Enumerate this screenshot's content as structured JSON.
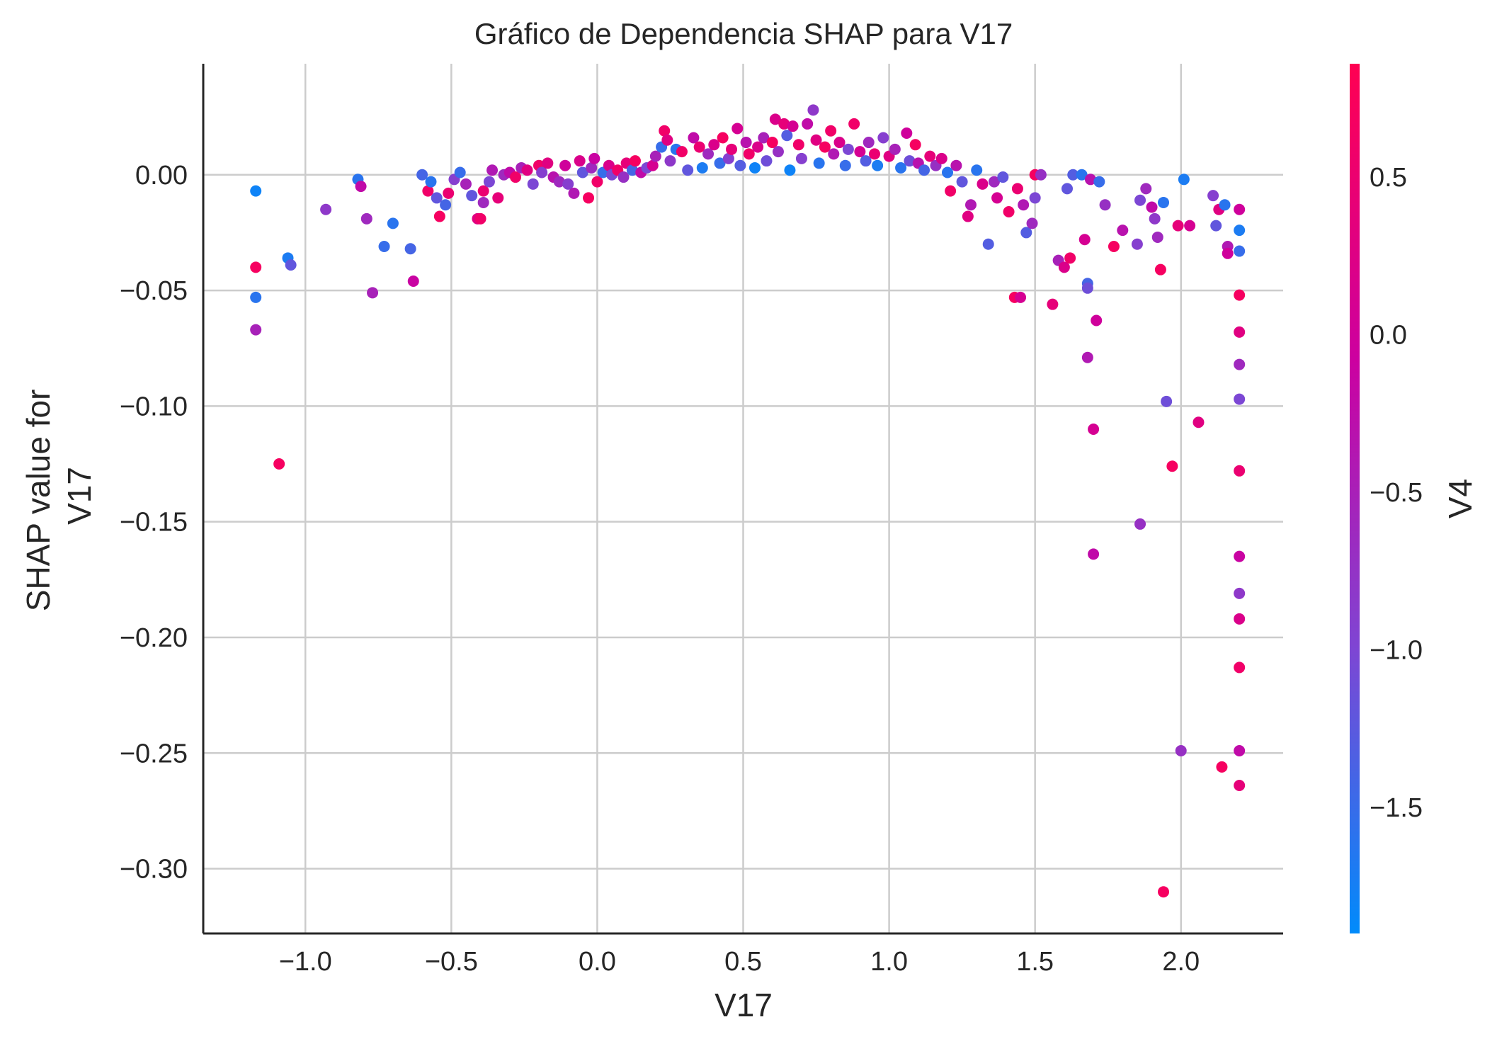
{
  "chart_data": {
    "type": "scatter",
    "title": "Gráfico de Dependencia SHAP para V17",
    "xlabel": "V17",
    "ylabel_lines": [
      "SHAP value for",
      "V17"
    ],
    "xlim": [
      -1.35,
      2.35
    ],
    "ylim": [
      -0.328,
      0.048
    ],
    "xticks": [
      -1.0,
      -0.5,
      0.0,
      0.5,
      1.0,
      1.5,
      2.0
    ],
    "xtick_labels": [
      "−1.0",
      "−0.5",
      "0.0",
      "0.5",
      "1.0",
      "1.5",
      "2.0"
    ],
    "yticks": [
      0.0,
      -0.05,
      -0.1,
      -0.15,
      -0.2,
      -0.25,
      -0.3
    ],
    "ytick_labels": [
      "0.00",
      "−0.05",
      "−0.10",
      "−0.15",
      "−0.20",
      "−0.25",
      "−0.30"
    ],
    "grid": true,
    "colorbar": {
      "label": "V4",
      "range": [
        -1.9,
        0.86
      ],
      "ticks": [
        0.5,
        0.0,
        -0.5,
        -1.0,
        -1.5
      ],
      "tick_labels": [
        "0.5",
        "0.0",
        "−0.5",
        "−1.0",
        "−1.5"
      ],
      "colors": [
        "#008bfb",
        "#7f45d3",
        "#cc00a0",
        "#ff0052"
      ]
    },
    "points": [
      [
        -1.17,
        -0.007,
        -1.8
      ],
      [
        -1.17,
        -0.04,
        0.7
      ],
      [
        -1.17,
        -0.053,
        -1.6
      ],
      [
        -1.17,
        -0.067,
        -0.5
      ],
      [
        -1.09,
        -0.125,
        0.7
      ],
      [
        -1.06,
        -0.036,
        -1.7
      ],
      [
        -1.05,
        -0.039,
        -1.2
      ],
      [
        -0.93,
        -0.015,
        -0.8
      ],
      [
        -0.82,
        -0.002,
        -1.6
      ],
      [
        -0.81,
        -0.005,
        -0.2
      ],
      [
        -0.79,
        -0.019,
        -0.6
      ],
      [
        -0.77,
        -0.051,
        -0.5
      ],
      [
        -0.73,
        -0.031,
        -1.5
      ],
      [
        -0.7,
        -0.021,
        -1.6
      ],
      [
        -0.64,
        -0.032,
        -1.4
      ],
      [
        -0.63,
        -0.046,
        -0.1
      ],
      [
        -0.6,
        0.0,
        -1.4
      ],
      [
        -0.58,
        -0.007,
        0.6
      ],
      [
        -0.57,
        -0.003,
        -1.6
      ],
      [
        -0.55,
        -0.01,
        -1.2
      ],
      [
        -0.54,
        -0.018,
        0.7
      ],
      [
        -0.52,
        -0.013,
        -1.4
      ],
      [
        -0.51,
        -0.008,
        0.5
      ],
      [
        -0.49,
        -0.002,
        -0.9
      ],
      [
        -0.47,
        0.001,
        -1.5
      ],
      [
        -0.45,
        -0.004,
        -0.5
      ],
      [
        -0.43,
        -0.009,
        -1.2
      ],
      [
        -0.41,
        -0.019,
        0.3
      ],
      [
        -0.4,
        -0.019,
        0.6
      ],
      [
        -0.39,
        -0.007,
        0.5
      ],
      [
        -0.39,
        -0.012,
        -0.6
      ],
      [
        -0.37,
        -0.003,
        -1.0
      ],
      [
        -0.36,
        0.002,
        -0.4
      ],
      [
        -0.34,
        -0.01,
        0.4
      ],
      [
        -0.32,
        0.0,
        -0.6
      ],
      [
        -0.3,
        0.001,
        -0.2
      ],
      [
        -0.28,
        -0.001,
        0.6
      ],
      [
        -0.26,
        0.003,
        -0.5
      ],
      [
        -0.24,
        0.002,
        0.3
      ],
      [
        -0.22,
        -0.004,
        -1.0
      ],
      [
        -0.2,
        0.004,
        0.6
      ],
      [
        -0.19,
        0.001,
        -0.9
      ],
      [
        -0.17,
        0.005,
        0.3
      ],
      [
        -0.15,
        -0.001,
        -0.3
      ],
      [
        -0.13,
        -0.003,
        -0.6
      ],
      [
        -0.11,
        0.004,
        0.0
      ],
      [
        -0.1,
        -0.004,
        -0.9
      ],
      [
        -0.08,
        -0.008,
        -0.4
      ],
      [
        -0.06,
        0.006,
        0.2
      ],
      [
        -0.05,
        0.001,
        -1.2
      ],
      [
        -0.03,
        -0.01,
        0.7
      ],
      [
        -0.02,
        0.003,
        -0.6
      ],
      [
        -0.01,
        0.007,
        -0.1
      ],
      [
        0.0,
        -0.003,
        0.6
      ],
      [
        0.02,
        0.001,
        -1.5
      ],
      [
        0.04,
        0.004,
        0.2
      ],
      [
        0.05,
        0.0,
        -1.0
      ],
      [
        0.07,
        0.002,
        0.6
      ],
      [
        0.09,
        -0.001,
        -0.7
      ],
      [
        0.1,
        0.005,
        0.4
      ],
      [
        0.12,
        0.002,
        -1.4
      ],
      [
        0.13,
        0.006,
        0.7
      ],
      [
        0.15,
        0.001,
        -0.2
      ],
      [
        0.17,
        0.003,
        -1.0
      ],
      [
        0.19,
        0.004,
        0.1
      ],
      [
        0.2,
        0.008,
        -0.5
      ],
      [
        0.22,
        0.012,
        -1.5
      ],
      [
        0.23,
        0.019,
        0.6
      ],
      [
        0.24,
        0.015,
        0.3
      ],
      [
        0.25,
        0.006,
        -0.8
      ],
      [
        0.27,
        0.011,
        -1.6
      ],
      [
        0.29,
        0.01,
        0.6
      ],
      [
        0.31,
        0.002,
        -1.2
      ],
      [
        0.33,
        0.016,
        -0.2
      ],
      [
        0.35,
        0.012,
        0.5
      ],
      [
        0.36,
        0.003,
        -1.7
      ],
      [
        0.38,
        0.009,
        -0.6
      ],
      [
        0.4,
        0.013,
        0.2
      ],
      [
        0.42,
        0.005,
        -1.5
      ],
      [
        0.43,
        0.016,
        0.7
      ],
      [
        0.45,
        0.007,
        -0.9
      ],
      [
        0.46,
        0.011,
        0.4
      ],
      [
        0.48,
        0.02,
        0.1
      ],
      [
        0.49,
        0.004,
        -1.3
      ],
      [
        0.51,
        0.014,
        -0.3
      ],
      [
        0.52,
        0.009,
        0.6
      ],
      [
        0.54,
        0.003,
        -1.8
      ],
      [
        0.55,
        0.012,
        0.2
      ],
      [
        0.57,
        0.016,
        -0.5
      ],
      [
        0.58,
        0.006,
        -1.1
      ],
      [
        0.6,
        0.014,
        0.7
      ],
      [
        0.61,
        0.024,
        0.2
      ],
      [
        0.62,
        0.01,
        -0.7
      ],
      [
        0.64,
        0.022,
        0.4
      ],
      [
        0.65,
        0.017,
        -1.3
      ],
      [
        0.66,
        0.002,
        -1.8
      ],
      [
        0.67,
        0.021,
        0.1
      ],
      [
        0.69,
        0.013,
        0.6
      ],
      [
        0.7,
        0.007,
        -0.9
      ],
      [
        0.72,
        0.022,
        -0.2
      ],
      [
        0.74,
        0.028,
        -0.8
      ],
      [
        0.75,
        0.015,
        0.3
      ],
      [
        0.76,
        0.005,
        -1.6
      ],
      [
        0.78,
        0.012,
        0.7
      ],
      [
        0.8,
        0.019,
        0.6
      ],
      [
        0.81,
        0.009,
        -0.4
      ],
      [
        0.83,
        0.014,
        0.2
      ],
      [
        0.85,
        0.004,
        -1.5
      ],
      [
        0.86,
        0.011,
        -1.0
      ],
      [
        0.88,
        0.022,
        0.6
      ],
      [
        0.9,
        0.01,
        0.1
      ],
      [
        0.92,
        0.006,
        -1.3
      ],
      [
        0.93,
        0.014,
        -0.6
      ],
      [
        0.95,
        0.009,
        0.5
      ],
      [
        0.96,
        0.004,
        -1.7
      ],
      [
        0.98,
        0.016,
        -0.9
      ],
      [
        1.0,
        0.008,
        0.3
      ],
      [
        1.02,
        0.011,
        -0.5
      ],
      [
        1.04,
        0.003,
        -1.6
      ],
      [
        1.06,
        0.018,
        0.0
      ],
      [
        1.07,
        0.006,
        -1.1
      ],
      [
        1.09,
        0.013,
        0.7
      ],
      [
        1.1,
        0.005,
        -0.3
      ],
      [
        1.12,
        0.002,
        -1.4
      ],
      [
        1.14,
        0.008,
        0.4
      ],
      [
        1.16,
        0.004,
        -0.7
      ],
      [
        1.18,
        0.007,
        0.2
      ],
      [
        1.2,
        0.001,
        -1.6
      ],
      [
        1.21,
        -0.007,
        0.6
      ],
      [
        1.23,
        0.004,
        -0.3
      ],
      [
        1.25,
        -0.003,
        -1.2
      ],
      [
        1.27,
        -0.018,
        0.3
      ],
      [
        1.28,
        -0.013,
        -0.4
      ],
      [
        1.3,
        0.002,
        -1.6
      ],
      [
        1.32,
        -0.004,
        0.2
      ],
      [
        1.34,
        -0.03,
        -1.3
      ],
      [
        1.36,
        -0.003,
        -0.6
      ],
      [
        1.37,
        -0.01,
        0.1
      ],
      [
        1.39,
        -0.001,
        -1.2
      ],
      [
        1.41,
        -0.016,
        0.6
      ],
      [
        1.43,
        -0.053,
        0.7
      ],
      [
        1.44,
        -0.006,
        0.5
      ],
      [
        1.45,
        -0.053,
        0.1
      ],
      [
        1.46,
        -0.013,
        -0.4
      ],
      [
        1.47,
        -0.025,
        -1.3
      ],
      [
        1.49,
        -0.021,
        -0.6
      ],
      [
        1.5,
        -0.01,
        -1.0
      ],
      [
        1.5,
        0.0,
        0.7
      ],
      [
        1.52,
        0.0,
        -0.7
      ],
      [
        1.56,
        -0.056,
        0.4
      ],
      [
        1.58,
        -0.037,
        -0.5
      ],
      [
        1.6,
        -0.04,
        0.2
      ],
      [
        1.61,
        -0.006,
        -1.2
      ],
      [
        1.62,
        -0.036,
        0.6
      ],
      [
        1.63,
        0.0,
        -1.3
      ],
      [
        1.66,
        0.0,
        -1.6
      ],
      [
        1.67,
        -0.028,
        0.1
      ],
      [
        1.68,
        -0.047,
        -1.4
      ],
      [
        1.68,
        -0.049,
        -1.1
      ],
      [
        1.68,
        -0.079,
        -0.4
      ],
      [
        1.69,
        -0.002,
        -0.3
      ],
      [
        1.7,
        -0.11,
        0.1
      ],
      [
        1.7,
        -0.164,
        -0.2
      ],
      [
        1.71,
        -0.063,
        0.0
      ],
      [
        1.72,
        -0.003,
        -1.5
      ],
      [
        1.74,
        -0.013,
        -0.7
      ],
      [
        1.77,
        -0.031,
        0.7
      ],
      [
        1.8,
        -0.024,
        -0.3
      ],
      [
        1.85,
        -0.03,
        -0.9
      ],
      [
        1.86,
        -0.011,
        -1.0
      ],
      [
        1.86,
        -0.151,
        -0.7
      ],
      [
        1.88,
        -0.006,
        -0.6
      ],
      [
        1.9,
        -0.014,
        -0.2
      ],
      [
        1.91,
        -0.019,
        -0.8
      ],
      [
        1.92,
        -0.027,
        -0.6
      ],
      [
        1.93,
        -0.041,
        0.7
      ],
      [
        1.94,
        -0.012,
        -1.6
      ],
      [
        1.95,
        -0.098,
        -1.1
      ],
      [
        1.97,
        -0.126,
        0.7
      ],
      [
        1.99,
        -0.022,
        0.4
      ],
      [
        2.0,
        -0.249,
        -0.7
      ],
      [
        2.01,
        -0.002,
        -1.7
      ],
      [
        2.03,
        -0.022,
        0.1
      ],
      [
        2.06,
        -0.107,
        0.3
      ],
      [
        2.11,
        -0.009,
        -0.9
      ],
      [
        2.12,
        -0.022,
        -1.2
      ],
      [
        2.13,
        -0.015,
        0.3
      ],
      [
        2.14,
        -0.256,
        0.7
      ],
      [
        2.15,
        -0.013,
        -1.6
      ],
      [
        2.16,
        -0.031,
        -0.4
      ],
      [
        2.16,
        -0.034,
        0.0
      ],
      [
        2.2,
        -0.015,
        0.0
      ],
      [
        2.2,
        -0.024,
        -1.7
      ],
      [
        2.2,
        -0.033,
        -1.5
      ],
      [
        2.2,
        -0.052,
        0.7
      ],
      [
        2.2,
        -0.068,
        0.3
      ],
      [
        2.2,
        -0.082,
        -0.6
      ],
      [
        2.2,
        -0.097,
        -1.0
      ],
      [
        2.2,
        -0.128,
        0.5
      ],
      [
        2.2,
        -0.165,
        -0.1
      ],
      [
        2.2,
        -0.181,
        -0.8
      ],
      [
        2.2,
        -0.192,
        0.2
      ],
      [
        2.2,
        -0.213,
        0.6
      ],
      [
        2.2,
        -0.249,
        -0.2
      ],
      [
        2.2,
        -0.264,
        0.4
      ],
      [
        1.94,
        -0.31,
        0.7
      ]
    ]
  }
}
